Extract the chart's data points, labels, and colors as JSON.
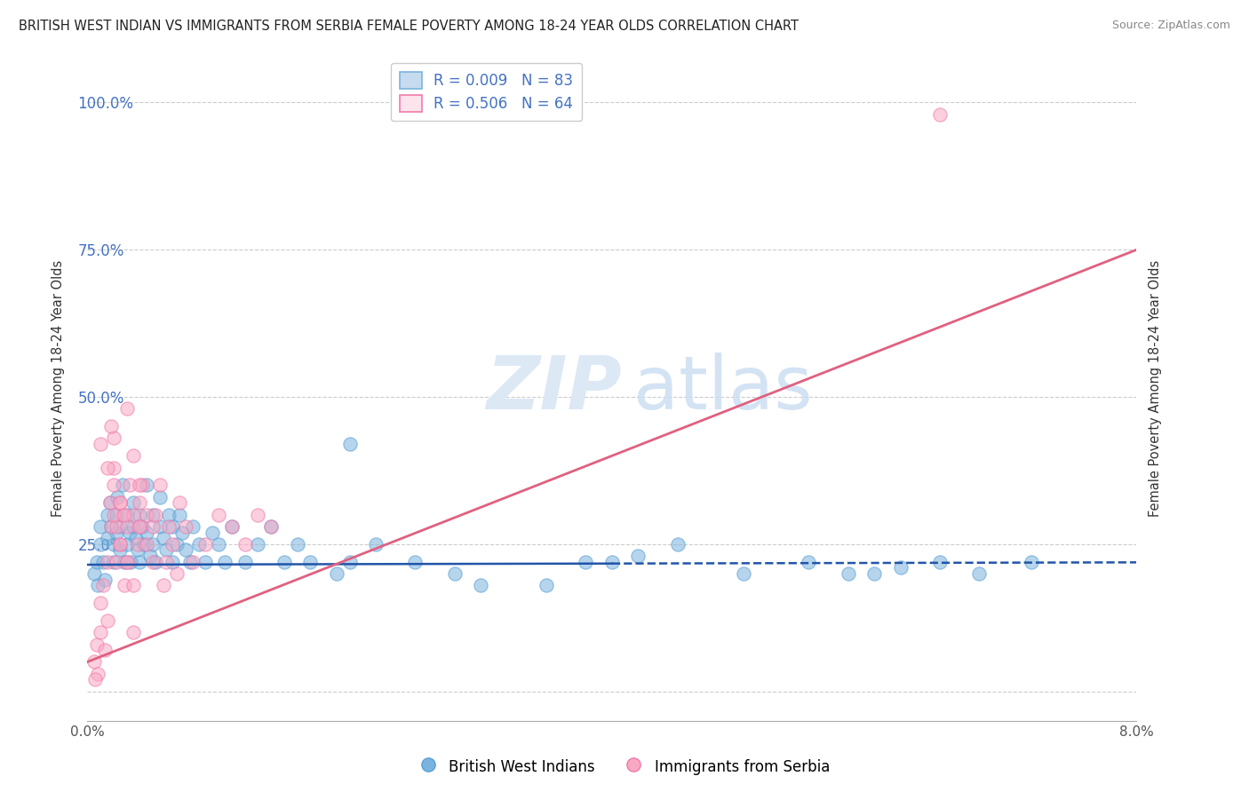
{
  "title": "BRITISH WEST INDIAN VS IMMIGRANTS FROM SERBIA FEMALE POVERTY AMONG 18-24 YEAR OLDS CORRELATION CHART",
  "source": "Source: ZipAtlas.com",
  "ylabel": "Female Poverty Among 18-24 Year Olds",
  "xmin": 0.0,
  "xmax": 8.0,
  "ymin": -5.0,
  "ymax": 108.0,
  "blue_R": 0.009,
  "blue_N": 83,
  "pink_R": 0.506,
  "pink_N": 64,
  "blue_color": "#7ab4de",
  "blue_edge": "#5a9fd4",
  "pink_color": "#f9a8c4",
  "pink_edge": "#f07aab",
  "blue_label": "British West Indians",
  "pink_label": "Immigrants from Serbia",
  "blue_trend_color": "#2255aa",
  "pink_trend_color": "#e06080",
  "blue_trend_slope": 0.05,
  "blue_trend_intercept": 21.5,
  "pink_trend_slope": 8.75,
  "pink_trend_intercept": 5.0,
  "blue_solid_end": 4.0,
  "yticks": [
    0,
    25,
    50,
    75,
    100
  ],
  "ytick_labels": [
    "",
    "25.0%",
    "50.0%",
    "75.0%",
    "100.0%"
  ],
  "title_fontsize": 10.5,
  "legend_fontsize": 12,
  "blue_scatter_x": [
    0.05,
    0.07,
    0.08,
    0.1,
    0.1,
    0.12,
    0.13,
    0.15,
    0.15,
    0.17,
    0.18,
    0.2,
    0.2,
    0.22,
    0.22,
    0.23,
    0.25,
    0.25,
    0.27,
    0.28,
    0.3,
    0.3,
    0.32,
    0.33,
    0.35,
    0.35,
    0.37,
    0.38,
    0.4,
    0.4,
    0.42,
    0.43,
    0.45,
    0.45,
    0.48,
    0.5,
    0.5,
    0.52,
    0.55,
    0.55,
    0.58,
    0.6,
    0.62,
    0.65,
    0.65,
    0.68,
    0.7,
    0.72,
    0.75,
    0.78,
    0.8,
    0.85,
    0.9,
    0.95,
    1.0,
    1.05,
    1.1,
    1.2,
    1.3,
    1.4,
    1.5,
    1.6,
    1.7,
    1.9,
    2.0,
    2.2,
    2.5,
    2.8,
    3.0,
    3.5,
    4.0,
    4.5,
    5.0,
    5.5,
    6.0,
    6.5,
    6.8,
    7.2,
    2.0,
    3.8,
    4.2,
    5.8,
    6.2
  ],
  "blue_scatter_y": [
    20,
    22,
    18,
    25,
    28,
    22,
    19,
    30,
    26,
    32,
    28,
    25,
    22,
    30,
    27,
    33,
    28,
    24,
    35,
    22,
    30,
    25,
    27,
    22,
    28,
    32,
    26,
    24,
    30,
    22,
    28,
    25,
    27,
    35,
    23,
    25,
    30,
    22,
    28,
    33,
    26,
    24,
    30,
    22,
    28,
    25,
    30,
    27,
    24,
    22,
    28,
    25,
    22,
    27,
    25,
    22,
    28,
    22,
    25,
    28,
    22,
    25,
    22,
    20,
    22,
    25,
    22,
    20,
    18,
    18,
    22,
    25,
    20,
    22,
    20,
    22,
    20,
    22,
    42,
    22,
    23,
    20,
    21
  ],
  "pink_scatter_x": [
    0.05,
    0.07,
    0.08,
    0.1,
    0.1,
    0.12,
    0.13,
    0.15,
    0.15,
    0.17,
    0.18,
    0.2,
    0.2,
    0.22,
    0.22,
    0.25,
    0.25,
    0.27,
    0.28,
    0.3,
    0.3,
    0.32,
    0.35,
    0.35,
    0.38,
    0.4,
    0.4,
    0.42,
    0.45,
    0.45,
    0.5,
    0.5,
    0.52,
    0.55,
    0.58,
    0.6,
    0.62,
    0.65,
    0.68,
    0.7,
    0.75,
    0.8,
    0.9,
    1.0,
    1.1,
    1.2,
    1.3,
    1.4,
    0.1,
    0.15,
    0.2,
    0.25,
    0.3,
    0.35,
    0.4,
    0.3,
    0.2,
    0.18,
    0.25,
    0.35,
    0.28,
    0.4,
    6.5,
    0.06
  ],
  "pink_scatter_y": [
    5,
    8,
    3,
    10,
    15,
    18,
    7,
    22,
    12,
    32,
    28,
    38,
    35,
    22,
    28,
    32,
    25,
    30,
    18,
    28,
    22,
    35,
    40,
    30,
    25,
    32,
    28,
    35,
    30,
    25,
    28,
    22,
    30,
    35,
    18,
    22,
    28,
    25,
    20,
    32,
    28,
    22,
    25,
    30,
    28,
    25,
    30,
    28,
    42,
    38,
    30,
    32,
    22,
    18,
    35,
    48,
    43,
    45,
    25,
    10,
    30,
    28,
    98,
    2
  ]
}
